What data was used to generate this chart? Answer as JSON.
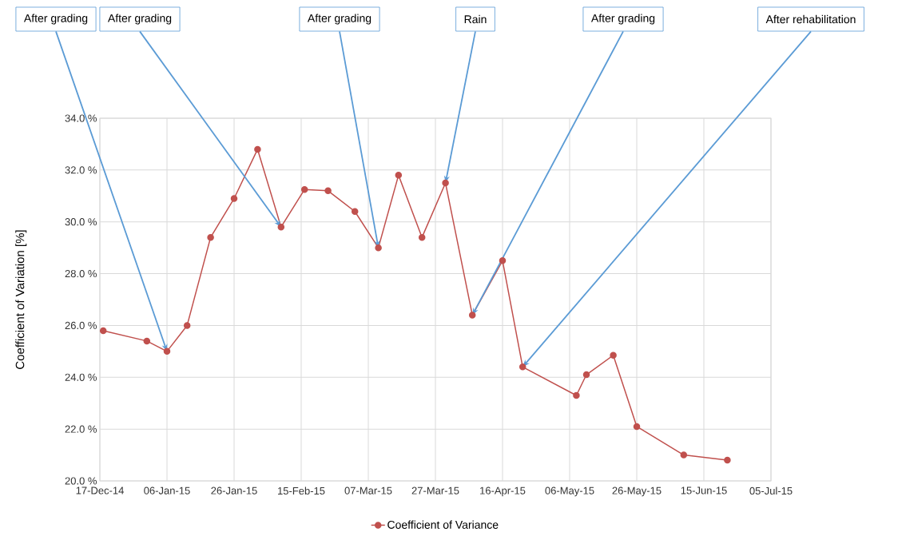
{
  "chart_data": {
    "type": "line",
    "ylabel": "Coefficient of Variation [%]",
    "x": [
      "2014-12-18",
      "2014-12-31",
      "2015-01-06",
      "2015-01-12",
      "2015-01-19",
      "2015-01-26",
      "2015-02-02",
      "2015-02-09",
      "2015-02-16",
      "2015-02-23",
      "2015-03-03",
      "2015-03-10",
      "2015-03-16",
      "2015-03-23",
      "2015-03-30",
      "2015-04-07",
      "2015-04-16",
      "2015-04-22",
      "2015-05-08",
      "2015-05-11",
      "2015-05-19",
      "2015-05-26",
      "2015-06-09",
      "2015-06-22"
    ],
    "series": [
      {
        "name": "Coefficient of Variance",
        "color": "#c0504d",
        "values": [
          25.8,
          25.4,
          25.0,
          26.0,
          29.4,
          30.9,
          32.8,
          29.8,
          31.25,
          31.2,
          30.4,
          29.0,
          31.8,
          29.4,
          31.5,
          26.4,
          28.5,
          24.4,
          23.3,
          24.1,
          24.85,
          22.1,
          21.0,
          20.8
        ]
      }
    ],
    "xlim": [
      "2014-12-17",
      "2015-07-05"
    ],
    "xticks": [
      {
        "value": "2014-12-17",
        "label": "17-Dec-14"
      },
      {
        "value": "2015-01-06",
        "label": "06-Jan-15"
      },
      {
        "value": "2015-01-26",
        "label": "26-Jan-15"
      },
      {
        "value": "2015-02-15",
        "label": "15-Feb-15"
      },
      {
        "value": "2015-03-07",
        "label": "07-Mar-15"
      },
      {
        "value": "2015-03-27",
        "label": "27-Mar-15"
      },
      {
        "value": "2015-04-16",
        "label": "16-Apr-15"
      },
      {
        "value": "2015-05-06",
        "label": "06-May-15"
      },
      {
        "value": "2015-05-26",
        "label": "26-May-15"
      },
      {
        "value": "2015-06-15",
        "label": "15-Jun-15"
      },
      {
        "value": "2015-07-05",
        "label": "05-Jul-15"
      }
    ],
    "ylim": [
      20,
      34
    ],
    "yticks": [
      {
        "value": 20,
        "label": "20.0 %"
      },
      {
        "value": 22,
        "label": "22.0 %"
      },
      {
        "value": 24,
        "label": "24.0 %"
      },
      {
        "value": 26,
        "label": "26.0 %"
      },
      {
        "value": 28,
        "label": "28.0 %"
      },
      {
        "value": 30,
        "label": "30.0 %"
      },
      {
        "value": 32,
        "label": "32.0 %"
      },
      {
        "value": 34,
        "label": "34.0 %"
      }
    ],
    "annotations": [
      {
        "text": "After grading",
        "x": "2015-01-06",
        "y": 25.0
      },
      {
        "text": "After grading",
        "x": "2015-02-09",
        "y": 29.8
      },
      {
        "text": "After grading",
        "x": "2015-03-10",
        "y": 29.0
      },
      {
        "text": "Rain",
        "x": "2015-03-30",
        "y": 31.5
      },
      {
        "text": "After grading",
        "x": "2015-04-07",
        "y": 26.4
      },
      {
        "text": "After rehabilitation",
        "x": "2015-04-22",
        "y": 24.4
      }
    ],
    "grid": true,
    "legend": "bottom",
    "marker": "circle",
    "line_style": "solid"
  }
}
